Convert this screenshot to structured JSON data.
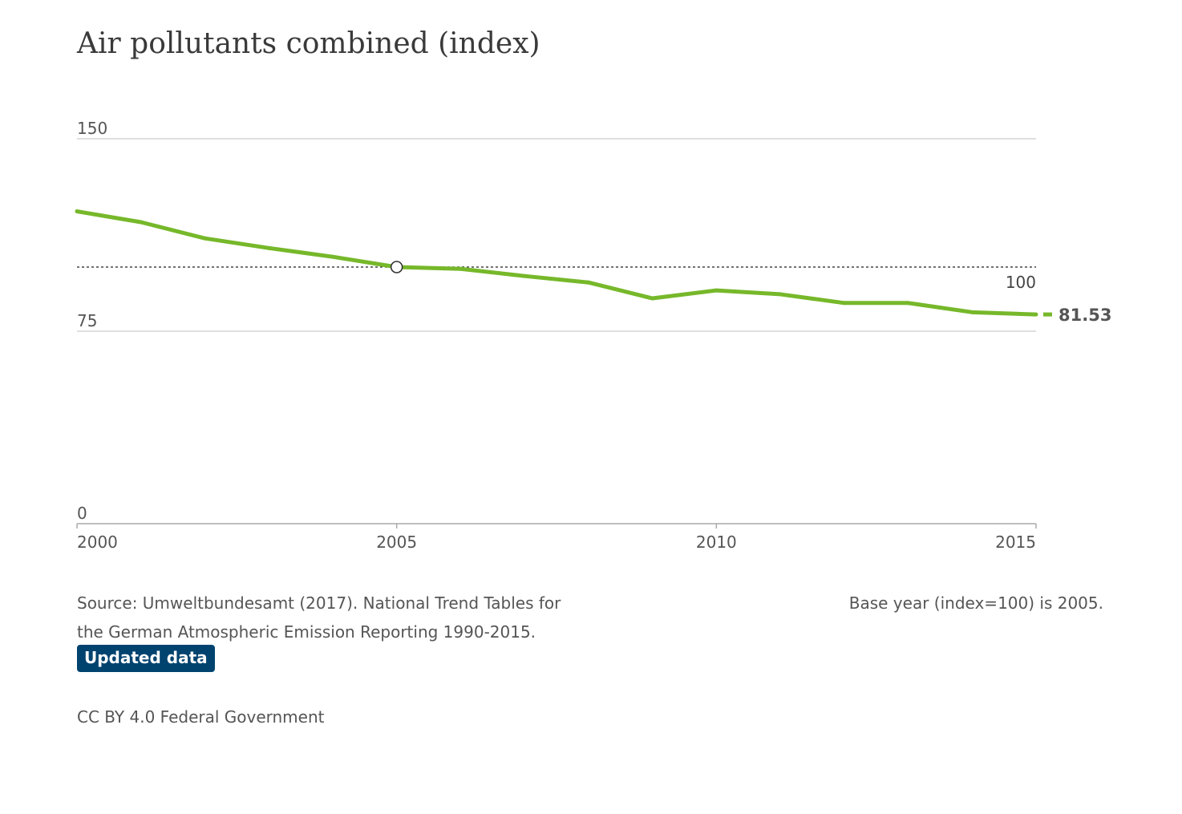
{
  "chart_data": {
    "type": "line",
    "title": "Air pollutants combined (index)",
    "x": [
      2000,
      2001,
      2002,
      2003,
      2004,
      2005,
      2006,
      2007,
      2008,
      2009,
      2010,
      2011,
      2012,
      2013,
      2014,
      2015
    ],
    "series": [
      {
        "values": [
          121.7,
          117.5,
          111.2,
          107.4,
          104.0,
          100.0,
          99.3,
          96.5,
          94.0,
          87.8,
          90.9,
          89.4,
          86.0,
          86.0,
          82.4,
          81.53
        ]
      }
    ],
    "xlim": [
      2000,
      2015
    ],
    "ylim": [
      0,
      150
    ],
    "y_ticks": [
      {
        "value": 150,
        "label": "150"
      },
      {
        "value": 75,
        "label": "75"
      },
      {
        "value": 0,
        "label": "0"
      }
    ],
    "x_ticks": [
      {
        "value": 2000,
        "label": "2000"
      },
      {
        "value": 2005,
        "label": "2005"
      },
      {
        "value": 2010,
        "label": "2010"
      },
      {
        "value": 2015,
        "label": "2015"
      }
    ],
    "reference_line": {
      "value": 100,
      "label": "100",
      "style": "dotted"
    },
    "base_year_marker": {
      "x": 2005,
      "y": 100
    },
    "end_label": "81.53",
    "grid": true,
    "colors": {
      "line": "#76b82a",
      "grid": "#cccccc",
      "axis": "#aaaaaa",
      "reference": "#444444",
      "end_label": "#555555"
    }
  },
  "footer": {
    "source": "Source: Umweltbundesamt (2017). National Trend Tables for the German Atmospheric Emission Reporting 1990-2015.",
    "base_year_note": "Base year (index=100) is 2005.",
    "updated_button": "Updated data",
    "license": "CC BY 4.0 Federal Government"
  },
  "colors": {
    "badge_bg": "#00436f",
    "badge_text": "#ffffff"
  }
}
